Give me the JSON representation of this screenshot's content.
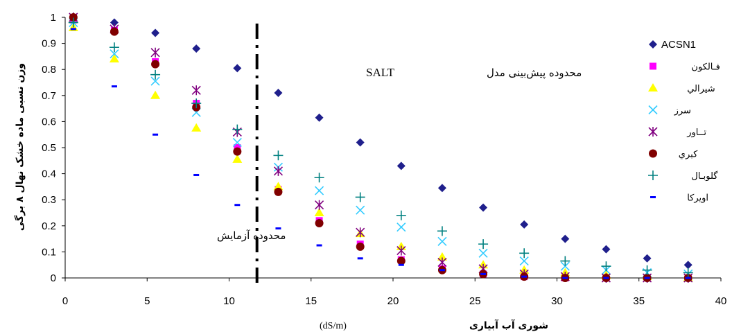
{
  "chart_data": {
    "type": "scatter",
    "xlabel": "شوری آب آبیاری",
    "xunit": "(dS/m)",
    "ylabel": "وزن نسبی ماده خشک نهال ۸ برگی",
    "xlim": [
      0,
      40
    ],
    "ylim": [
      0,
      1
    ],
    "x_ticks": [
      0,
      5,
      10,
      15,
      20,
      25,
      30,
      35,
      40
    ],
    "y_ticks": [
      0,
      0.1,
      0.2,
      0.3,
      0.4,
      0.5,
      0.6,
      0.7,
      0.8,
      0.9,
      1
    ],
    "x_tick_labels": [
      "0",
      "5",
      "10",
      "15",
      "20",
      "25",
      "30",
      "35",
      "40"
    ],
    "y_tick_labels": [
      "0",
      "0.1",
      "0.2",
      "0.3",
      "0.4",
      "0.5",
      "0.6",
      "0.7",
      "0.8",
      "0.9",
      "1"
    ],
    "threshold_x": 11.7,
    "legend_position": "right",
    "annotations": [
      {
        "text": "محدوده پیش‌بینی مدل",
        "text_ltr": "SALT"
      },
      {
        "text": "محدوده آزمایش"
      }
    ],
    "series": [
      {
        "name": "ACSN1",
        "marker": "diamond",
        "color": "#1f1f8c",
        "x": [
          0.5,
          3,
          5.5,
          8,
          10.5,
          13,
          15.5,
          18,
          20.5,
          23,
          25.5,
          28,
          30.5,
          33,
          35.5,
          38
        ],
        "y": [
          1.0,
          0.98,
          0.94,
          0.88,
          0.805,
          0.71,
          0.615,
          0.52,
          0.43,
          0.345,
          0.27,
          0.205,
          0.15,
          0.11,
          0.075,
          0.05
        ]
      },
      {
        "name": "فـالكون",
        "marker": "square",
        "color": "#ff00ff",
        "x": [
          0.5,
          3,
          5.5,
          8,
          10.5,
          13,
          15.5,
          18,
          20.5,
          23,
          25.5,
          28,
          30.5,
          33,
          35.5,
          38
        ],
        "y": [
          0.99,
          0.95,
          0.83,
          0.67,
          0.5,
          0.34,
          0.22,
          0.13,
          0.07,
          0.035,
          0.015,
          0.005,
          0.0,
          0.0,
          0.0,
          0.0
        ]
      },
      {
        "name": "شيرالي",
        "marker": "triangle",
        "color": "#ffff00",
        "x": [
          0.5,
          3,
          5.5,
          8,
          10.5,
          13,
          15.5,
          18,
          20.5,
          23,
          25.5,
          28,
          30.5,
          33,
          35.5,
          38
        ],
        "y": [
          0.96,
          0.84,
          0.7,
          0.575,
          0.455,
          0.35,
          0.25,
          0.17,
          0.12,
          0.08,
          0.05,
          0.03,
          0.02,
          0.01,
          0.005,
          0.0
        ]
      },
      {
        "name": "سرز",
        "marker": "x",
        "color": "#33ccff",
        "x": [
          0.5,
          3,
          5.5,
          8,
          10.5,
          13,
          15.5,
          18,
          20.5,
          23,
          25.5,
          28,
          30.5,
          33,
          35.5,
          38
        ],
        "y": [
          0.98,
          0.86,
          0.755,
          0.635,
          0.52,
          0.425,
          0.335,
          0.26,
          0.195,
          0.14,
          0.095,
          0.065,
          0.045,
          0.03,
          0.02,
          0.015
        ]
      },
      {
        "name": "تــاور",
        "marker": "star",
        "color": "#800080",
        "x": [
          0.5,
          3,
          5.5,
          8,
          10.5,
          13,
          15.5,
          18,
          20.5,
          23,
          25.5,
          28,
          30.5,
          33,
          35.5,
          38
        ],
        "y": [
          1.0,
          0.955,
          0.865,
          0.72,
          0.56,
          0.41,
          0.28,
          0.175,
          0.105,
          0.06,
          0.035,
          0.015,
          0.005,
          0.0,
          0.0,
          0.0
        ]
      },
      {
        "name": "كبري",
        "marker": "circle",
        "color": "#800000",
        "x": [
          0.5,
          3,
          5.5,
          8,
          10.5,
          13,
          15.5,
          18,
          20.5,
          23,
          25.5,
          28,
          30.5,
          33,
          35.5,
          38
        ],
        "y": [
          1.0,
          0.945,
          0.82,
          0.655,
          0.485,
          0.33,
          0.21,
          0.12,
          0.065,
          0.03,
          0.015,
          0.005,
          0.0,
          0.0,
          0.0,
          0.0
        ]
      },
      {
        "name": "گلوبـال",
        "marker": "plus",
        "color": "#008080",
        "x": [
          0.5,
          3,
          5.5,
          8,
          10.5,
          13,
          15.5,
          18,
          20.5,
          23,
          25.5,
          28,
          30.5,
          33,
          35.5,
          38
        ],
        "y": [
          0.98,
          0.885,
          0.78,
          0.67,
          0.57,
          0.47,
          0.385,
          0.31,
          0.24,
          0.18,
          0.13,
          0.095,
          0.065,
          0.045,
          0.03,
          0.02
        ]
      },
      {
        "name": "اويركا",
        "marker": "dash",
        "color": "#0000ff",
        "x": [
          0.5,
          3,
          5.5,
          8,
          10.5,
          13,
          15.5,
          18,
          20.5,
          23,
          25.5,
          28,
          30.5,
          33,
          35.5,
          38
        ],
        "y": [
          0.955,
          0.735,
          0.55,
          0.395,
          0.28,
          0.19,
          0.125,
          0.075,
          0.05,
          0.03,
          0.015,
          0.005,
          0.0,
          0.0,
          0.0,
          0.0
        ]
      }
    ]
  }
}
